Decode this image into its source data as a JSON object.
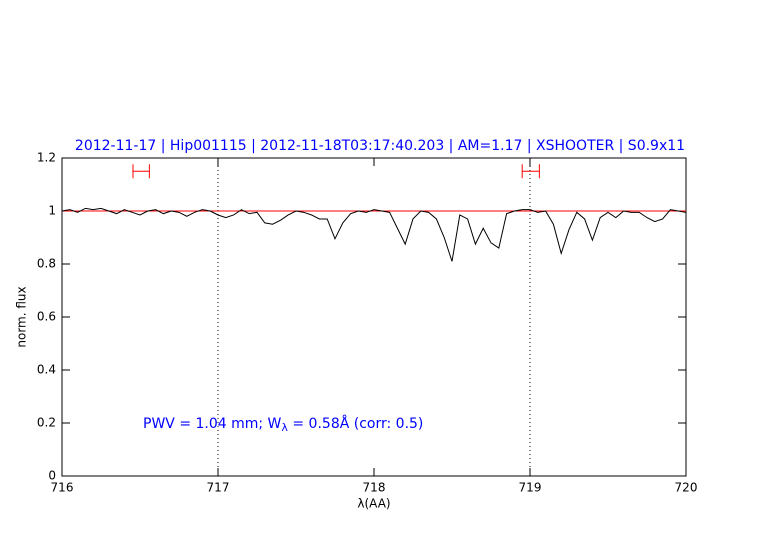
{
  "chart_data": {
    "type": "line",
    "title": "2012-11-17 | Hip001115 | 2012-11-18T03:17:40.203 | AM=1.17 | XSHOOTER | S0.9x11",
    "xlabel": "λ(AA)",
    "ylabel": "norm. flux",
    "annotation": [
      "PWV = 1.04 mm; W",
      "λ",
      " = 0.58Å (corr: 0.5)"
    ],
    "xlim": [
      716,
      720
    ],
    "xticks": [
      716,
      717,
      718,
      719,
      720
    ],
    "ylim": [
      0,
      1.2
    ],
    "yticks": [
      0,
      0.2,
      0.4,
      0.6,
      0.8,
      1,
      1.2
    ],
    "vlines": [
      717,
      719
    ],
    "hlines": [
      {
        "value": 1,
        "color": "#ff0000"
      }
    ],
    "ranges": [
      {
        "x": [
          716.455,
          716.56
        ],
        "y": 1.15,
        "color": "#ff0000"
      },
      {
        "x": [
          718.95,
          719.06
        ],
        "y": 1.15,
        "color": "#ff0000"
      }
    ],
    "x": [
      716.0,
      716.05,
      716.1,
      716.15,
      716.2,
      716.25,
      716.3,
      716.35,
      716.4,
      716.45,
      716.5,
      716.55,
      716.6,
      716.65,
      716.7,
      716.75,
      716.8,
      716.85,
      716.9,
      716.95,
      717.0,
      717.05,
      717.1,
      717.15,
      717.2,
      717.25,
      717.3,
      717.35,
      717.4,
      717.45,
      717.5,
      717.55,
      717.6,
      717.65,
      717.7,
      717.75,
      717.8,
      717.85,
      717.9,
      717.95,
      718.0,
      718.05,
      718.1,
      718.15,
      718.2,
      718.25,
      718.3,
      718.35,
      718.4,
      718.45,
      718.5,
      718.55,
      718.6,
      718.65,
      718.7,
      718.75,
      718.8,
      718.85,
      718.9,
      718.95,
      719.0,
      719.05,
      719.1,
      719.15,
      719.2,
      719.25,
      719.3,
      719.35,
      719.4,
      719.45,
      719.5,
      719.55,
      719.6,
      719.65,
      719.7,
      719.75,
      719.8,
      719.85,
      719.9,
      719.95,
      720.0
    ],
    "series": [
      {
        "color": "#000000",
        "values": [
          1.0,
          1.005,
          0.995,
          1.01,
          1.005,
          1.01,
          1.0,
          0.99,
          1.005,
          0.995,
          0.985,
          1.0,
          1.005,
          0.99,
          1.0,
          0.995,
          0.98,
          0.995,
          1.005,
          1.0,
          0.985,
          0.975,
          0.985,
          1.005,
          0.99,
          0.995,
          0.955,
          0.95,
          0.965,
          0.985,
          1.0,
          0.995,
          0.985,
          0.97,
          0.97,
          0.895,
          0.955,
          0.99,
          1.0,
          0.995,
          1.005,
          1.0,
          0.995,
          0.935,
          0.875,
          0.97,
          1.0,
          0.995,
          0.97,
          0.9,
          0.81,
          0.985,
          0.97,
          0.875,
          0.935,
          0.88,
          0.86,
          0.99,
          1.0,
          1.005,
          1.005,
          0.995,
          1.0,
          0.95,
          0.84,
          0.93,
          0.995,
          0.97,
          0.89,
          0.975,
          0.995,
          0.975,
          1.0,
          0.995,
          0.995,
          0.975,
          0.96,
          0.97,
          1.005,
          1.0,
          0.995
        ]
      }
    ]
  }
}
